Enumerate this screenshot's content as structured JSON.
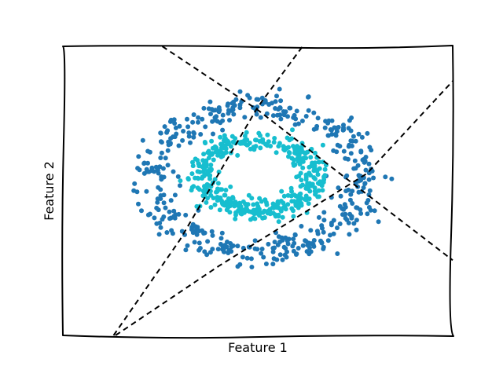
{
  "chart_data": {
    "type": "scatter",
    "title": "",
    "xlabel": "Feature 1",
    "ylabel": "Feature 2",
    "xlim": [
      0,
      10
    ],
    "ylim": [
      0,
      10
    ],
    "grid": false,
    "legend": "none",
    "series": [
      {
        "color": "#1f77b4",
        "marker_size": 3,
        "description": "outer ring",
        "ring": {
          "cx": 5.0,
          "cy": 5.4,
          "rx": 2.7,
          "ry": 2.5,
          "spread": 0.26,
          "count": 460
        }
      },
      {
        "color": "#17becf",
        "marker_size": 3,
        "description": "inner ring",
        "ring": {
          "cx": 5.0,
          "cy": 5.5,
          "rx": 1.45,
          "ry": 1.2,
          "spread": 0.2,
          "count": 440
        }
      }
    ],
    "lines": [
      {
        "style": "dashed",
        "color": "#000000",
        "points": [
          [
            2.55,
            10.0
          ],
          [
            5.0,
            7.8
          ],
          [
            7.2,
            5.5
          ],
          [
            10.0,
            2.6
          ]
        ]
      },
      {
        "style": "dashed",
        "color": "#000000",
        "points": [
          [
            1.3,
            0.0
          ],
          [
            3.0,
            3.3
          ],
          [
            5.0,
            7.9
          ],
          [
            6.15,
            10.0
          ]
        ]
      },
      {
        "style": "dashed",
        "color": "#000000",
        "points": [
          [
            1.35,
            0.0
          ],
          [
            4.0,
            2.4
          ],
          [
            7.8,
            5.6
          ],
          [
            10.0,
            8.8
          ]
        ]
      }
    ]
  }
}
